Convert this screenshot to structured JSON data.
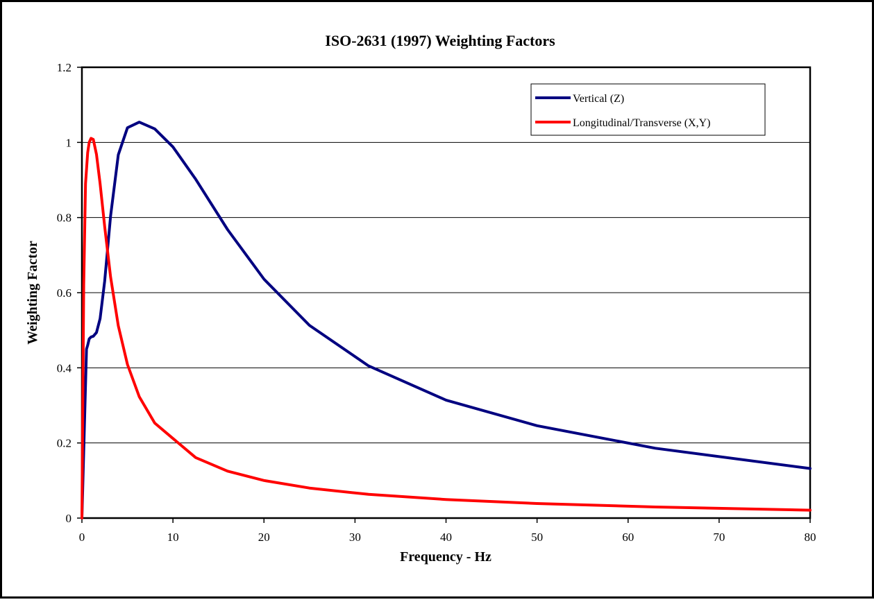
{
  "chart_data": {
    "type": "line",
    "title": "ISO-2631 (1997) Weighting Factors",
    "xlabel": "Frequency - Hz",
    "ylabel": "Weighting Factor",
    "xlim": [
      0,
      80
    ],
    "ylim": [
      0,
      1.2
    ],
    "x_ticks": [
      0,
      10,
      20,
      30,
      40,
      50,
      60,
      70,
      80
    ],
    "y_ticks": [
      0,
      0.2,
      0.4,
      0.6,
      0.8,
      1,
      1.2
    ],
    "x_tick_labels": [
      "0",
      "10",
      "20",
      "30",
      "40",
      "50",
      "60",
      "70",
      "80"
    ],
    "y_tick_labels": [
      "0",
      "0.2",
      "0.4",
      "0.6",
      "0.8",
      "1",
      "1.2"
    ],
    "grid": "horizontal",
    "legend_position": "top-right",
    "series": [
      {
        "name": "Vertical (Z)",
        "color": "#000080",
        "points": [
          [
            0,
            0
          ],
          [
            0.5,
            0.45
          ],
          [
            0.63,
            0.46
          ],
          [
            0.8,
            0.477
          ],
          [
            1.0,
            0.482
          ],
          [
            1.25,
            0.484
          ],
          [
            1.6,
            0.494
          ],
          [
            2.0,
            0.531
          ],
          [
            2.5,
            0.631
          ],
          [
            3.15,
            0.804
          ],
          [
            4.0,
            0.967
          ],
          [
            5.0,
            1.039
          ],
          [
            6.3,
            1.054
          ],
          [
            8.0,
            1.036
          ],
          [
            10.0,
            0.988
          ],
          [
            12.5,
            0.902
          ],
          [
            16.0,
            0.768
          ],
          [
            20.0,
            0.636
          ],
          [
            25.0,
            0.513
          ],
          [
            31.5,
            0.405
          ],
          [
            40.0,
            0.314
          ],
          [
            50.0,
            0.246
          ],
          [
            63.0,
            0.186
          ],
          [
            80.0,
            0.132
          ]
        ]
      },
      {
        "name": "Longitudinal/Transverse (X,Y)",
        "color": "#ff0000",
        "points": [
          [
            0,
            0
          ],
          [
            0.2,
            0.62
          ],
          [
            0.4,
            0.89
          ],
          [
            0.63,
            0.973
          ],
          [
            0.8,
            1.0
          ],
          [
            1.0,
            1.011
          ],
          [
            1.25,
            1.008
          ],
          [
            1.6,
            0.968
          ],
          [
            2.0,
            0.89
          ],
          [
            2.5,
            0.776
          ],
          [
            3.15,
            0.642
          ],
          [
            4.0,
            0.512
          ],
          [
            5.0,
            0.409
          ],
          [
            6.3,
            0.323
          ],
          [
            8.0,
            0.253
          ],
          [
            10.0,
            0.212
          ],
          [
            12.5,
            0.161
          ],
          [
            16.0,
            0.125
          ],
          [
            20.0,
            0.1
          ],
          [
            25.0,
            0.08
          ],
          [
            31.5,
            0.0632
          ],
          [
            40.0,
            0.0494
          ],
          [
            50.0,
            0.0388
          ],
          [
            63.0,
            0.0295
          ],
          [
            80.0,
            0.0211
          ]
        ]
      }
    ]
  }
}
